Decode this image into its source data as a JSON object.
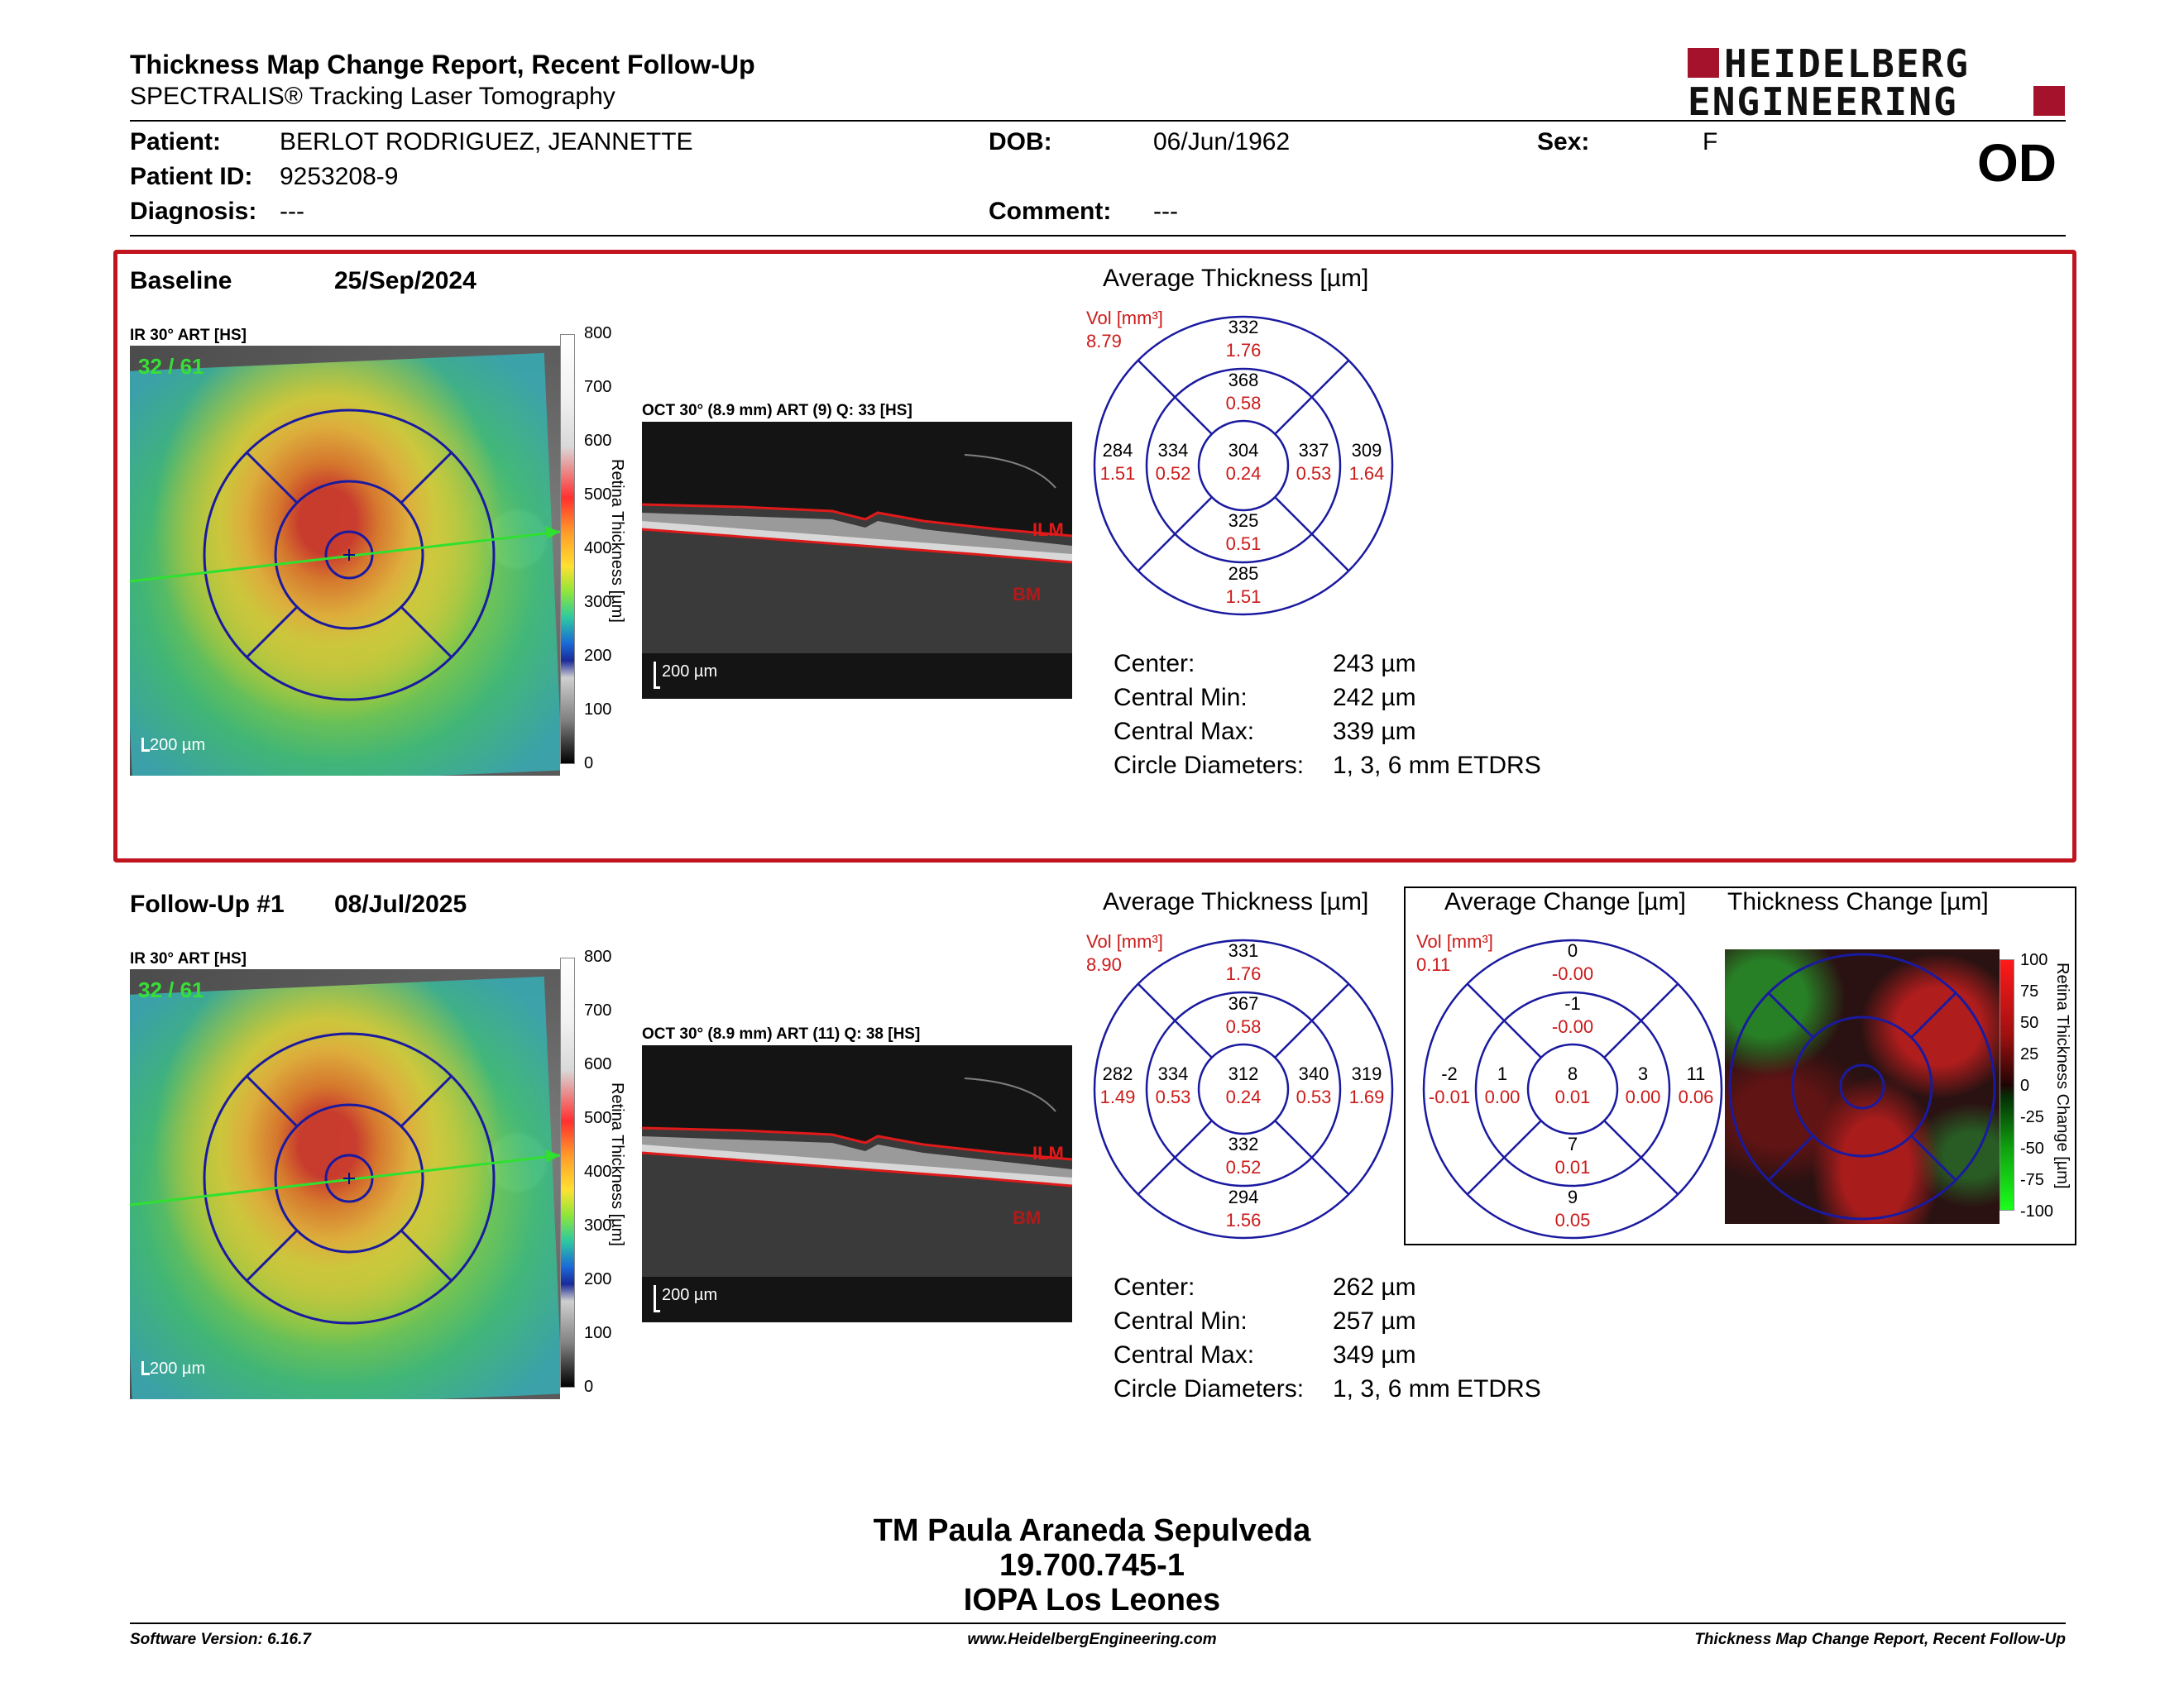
{
  "header": {
    "title": "Thickness Map Change Report, Recent Follow-Up",
    "subtitle": "SPECTRALIS® Tracking Laser Tomography",
    "logo_line1": "HEIDELBERG",
    "logo_line2": "ENGINEERING"
  },
  "patient": {
    "patient_label": "Patient:",
    "patient_value": "BERLOT RODRIGUEZ, JEANNETTE",
    "id_label": "Patient ID:",
    "id_value": "9253208-9",
    "diagnosis_label": "Diagnosis:",
    "diagnosis_value": "---",
    "dob_label": "DOB:",
    "dob_value": "06/Jun/1962",
    "comment_label": "Comment:",
    "comment_value": "---",
    "sex_label": "Sex:",
    "sex_value": "F",
    "eye": "OD"
  },
  "baseline": {
    "label": "Baseline",
    "date": "25/Sep/2024",
    "ir_label": "IR 30° ART [HS]",
    "ir_quality": "32 / 61",
    "ir_scale": "200 µm",
    "oct_label": "OCT 30° (8.9 mm) ART (9) Q: 33 [HS]",
    "oct_scale": "200 µm",
    "ilm": "ILM",
    "bm": "BM",
    "colorbar_ticks": [
      "800",
      "700",
      "600",
      "500",
      "400",
      "300",
      "200",
      "100",
      "0"
    ],
    "colorbar_label": "Retina Thickness [µm]",
    "avg_title": "Average Thickness [µm]",
    "vol_label": "Vol [mm³]",
    "vol_value": "8.79",
    "grid": {
      "center": [
        "304",
        "0.24"
      ],
      "inner_top": [
        "368",
        "0.58"
      ],
      "inner_right": [
        "337",
        "0.53"
      ],
      "inner_bottom": [
        "325",
        "0.51"
      ],
      "inner_left": [
        "334",
        "0.52"
      ],
      "outer_top": [
        "332",
        "1.76"
      ],
      "outer_right": [
        "309",
        "1.64"
      ],
      "outer_bottom": [
        "285",
        "1.51"
      ],
      "outer_left": [
        "284",
        "1.51"
      ]
    },
    "stats": {
      "center_label": "Center:",
      "center_value": "243 µm",
      "min_label": "Central Min:",
      "min_value": "242 µm",
      "max_label": "Central Max:",
      "max_value": "339 µm",
      "circ_label": "Circle Diameters:",
      "circ_value": "1, 3, 6 mm ETDRS"
    }
  },
  "followup": {
    "label": "Follow-Up #1",
    "date": "08/Jul/2025",
    "ir_label": "IR 30° ART [HS]",
    "ir_quality": "32 / 61",
    "ir_scale": "200 µm",
    "oct_label": "OCT 30° (8.9 mm) ART (11) Q: 38 [HS]",
    "oct_scale": "200 µm",
    "ilm": "ILM",
    "bm": "BM",
    "colorbar_ticks": [
      "800",
      "700",
      "600",
      "500",
      "400",
      "300",
      "200",
      "100",
      "0"
    ],
    "colorbar_label": "Retina Thickness [µm]",
    "avg_title": "Average Thickness [µm]",
    "vol_label": "Vol [mm³]",
    "vol_value": "8.90",
    "grid": {
      "center": [
        "312",
        "0.24"
      ],
      "inner_top": [
        "367",
        "0.58"
      ],
      "inner_right": [
        "340",
        "0.53"
      ],
      "inner_bottom": [
        "332",
        "0.52"
      ],
      "inner_left": [
        "334",
        "0.53"
      ],
      "outer_top": [
        "331",
        "1.76"
      ],
      "outer_right": [
        "319",
        "1.69"
      ],
      "outer_bottom": [
        "294",
        "1.56"
      ],
      "outer_left": [
        "282",
        "1.49"
      ]
    },
    "change_title": "Average Change [µm]",
    "change_vol_label": "Vol [mm³]",
    "change_vol_value": "0.11",
    "change_grid": {
      "center": [
        "8",
        "0.01"
      ],
      "inner_top": [
        "-1",
        "-0.00"
      ],
      "inner_right": [
        "3",
        "0.00"
      ],
      "inner_bottom": [
        "7",
        "0.01"
      ],
      "inner_left": [
        "1",
        "0.00"
      ],
      "outer_top": [
        "0",
        "-0.00"
      ],
      "outer_right": [
        "11",
        "0.06"
      ],
      "outer_bottom": [
        "9",
        "0.05"
      ],
      "outer_left": [
        "-2",
        "-0.01"
      ]
    },
    "tchange_title": "Thickness Change [µm]",
    "tchange_ticks": [
      "100",
      "75",
      "50",
      "25",
      "0",
      "-25",
      "-50",
      "-75",
      "-100"
    ],
    "tchange_label": "Retina Thickness Change [µm]",
    "stats": {
      "center_label": "Center:",
      "center_value": "262 µm",
      "min_label": "Central Min:",
      "min_value": "257 µm",
      "max_label": "Central Max:",
      "max_value": "349 µm",
      "circ_label": "Circle Diameters:",
      "circ_value": "1, 3, 6 mm ETDRS"
    }
  },
  "signature": {
    "line1": "TM Paula Araneda Sepulveda",
    "line2": "19.700.745-1",
    "line3": "IOPA Los Leones"
  },
  "footer": {
    "left": "Software Version: 6.16.7",
    "center": "www.HeidelbergEngineering.com",
    "right": "Thickness Map Change Report, Recent Follow-Up"
  },
  "colors": {
    "accent_red": "#c0141e",
    "grid_blue": "#1a1aa0",
    "value_red": "#cc1a1a"
  }
}
